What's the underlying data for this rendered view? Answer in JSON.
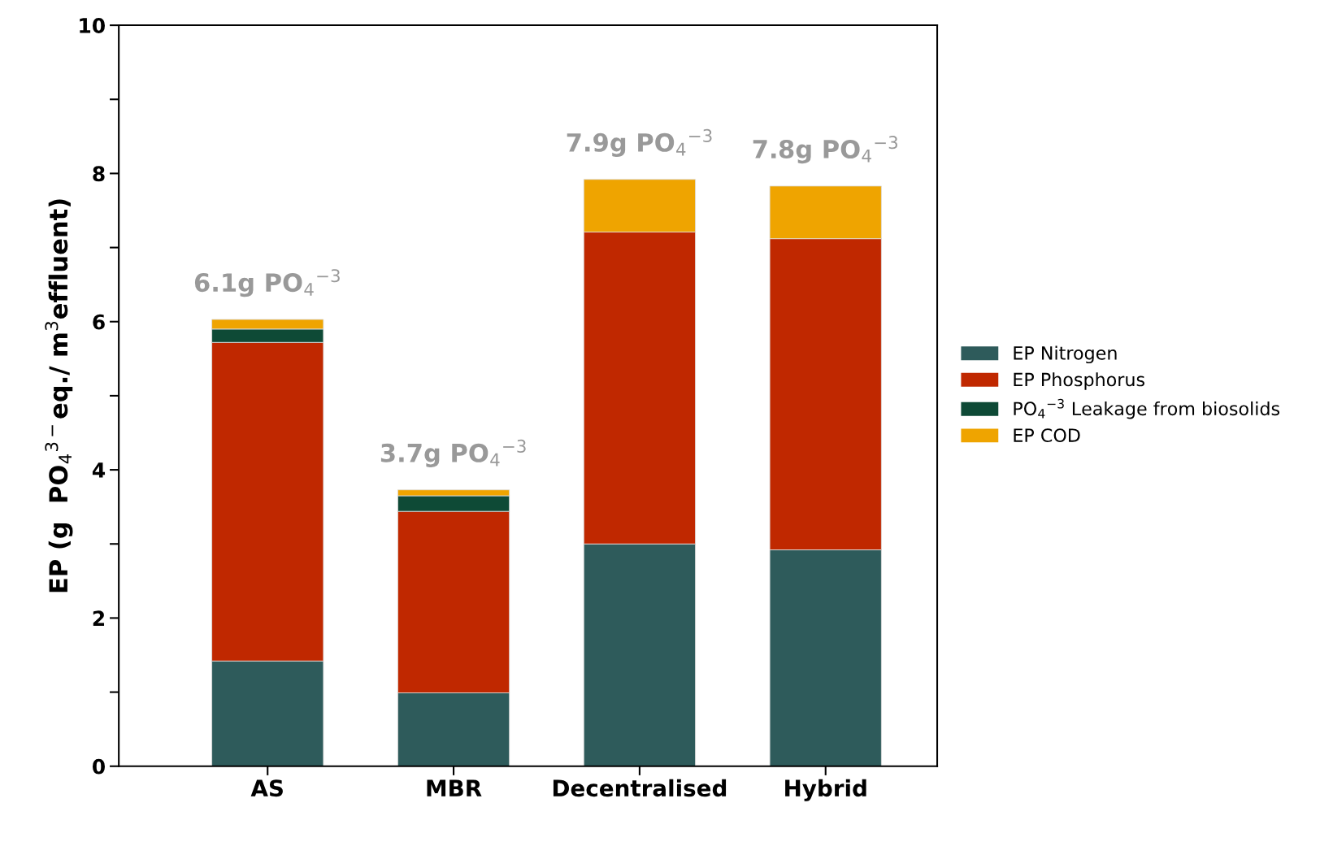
{
  "chart_data": {
    "type": "bar",
    "stacked": true,
    "ylabel": "EP (g  PO$_{4}$$^{3−}$eq./ m$^{3}$effluent)",
    "categories": [
      "AS",
      "MBR",
      "Decentralised",
      "Hybrid"
    ],
    "series": [
      {
        "name": "EP Nitrogen",
        "color": "#2e5b5b",
        "values": [
          1.42,
          0.99,
          3.0,
          2.92
        ]
      },
      {
        "name": "EP Phosphorus",
        "color": "#c02800",
        "values": [
          4.3,
          2.45,
          4.21,
          4.2
        ]
      },
      {
        "name": "PO$_{4}$$^{−3}$ Leakage from biosolids",
        "color": "#0e4a36",
        "values": [
          0.18,
          0.21,
          null,
          null
        ]
      },
      {
        "name": "EP COD",
        "color": "#efa400",
        "values": [
          0.13,
          0.08,
          0.71,
          0.71
        ]
      }
    ],
    "totals": [
      "6.1g PO$_{4}$$^{−3}$",
      "3.7g PO$_{4}$$^{−3}$",
      "7.9g PO$_{4}$$^{−3}$",
      "7.8g PO$_{4}$$^{−3}$"
    ],
    "ylim": [
      0,
      10
    ],
    "yticks": [
      0,
      {
        "value": 1,
        "label": null
      },
      2,
      {
        "value": 3,
        "label": null
      },
      4,
      {
        "value": 5,
        "label": null
      },
      6,
      {
        "value": 7,
        "label": null
      },
      8,
      {
        "value": 9,
        "label": null
      },
      10
    ],
    "grid": false,
    "legend": "right"
  }
}
